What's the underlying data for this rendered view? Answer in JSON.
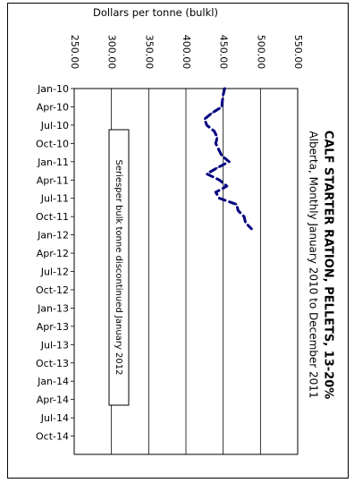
{
  "chart_data": {
    "type": "line",
    "title": "CALF STARTER RATION, PELLETS, 13-20%",
    "subtitle": "Alberta, Monthly January 2010 to December 2011",
    "ylabel": "Dollars per tonne (bulkl)",
    "yticks": [
      "250.00",
      "300.00",
      "350.00",
      "400.00",
      "450.00",
      "500.00",
      "550.00"
    ],
    "ylim": [
      250,
      550
    ],
    "xticks": [
      "Jan-10",
      "Apr-10",
      "Jul-10",
      "Oct-10",
      "Jan-11",
      "Apr-11",
      "Jul-11",
      "Oct-11",
      "Jan-12",
      "Apr-12",
      "Jul-12",
      "Oct-12",
      "Jan-13",
      "Apr-13",
      "Jul-13",
      "Oct-13",
      "Jan-14",
      "Apr-14",
      "Jul-14",
      "Oct-14"
    ],
    "x": [
      "Jan-10",
      "Feb-10",
      "Mar-10",
      "Apr-10",
      "May-10",
      "Jun-10",
      "Jul-10",
      "Aug-10",
      "Sep-10",
      "Oct-10",
      "Nov-10",
      "Dec-10",
      "Jan-11",
      "Feb-11",
      "Mar-11",
      "Apr-11",
      "May-11",
      "Jun-11",
      "Jul-11",
      "Aug-11",
      "Sep-11",
      "Oct-11",
      "Nov-11",
      "Dec-11"
    ],
    "series": [
      {
        "name": "",
        "color": "#00007f",
        "line_style": "dashed",
        "values": [
          452,
          450,
          449,
          448,
          435,
          425,
          428,
          438,
          442,
          440,
          444,
          448,
          458,
          442,
          428,
          445,
          455,
          440,
          445,
          468,
          470,
          478,
          480,
          488
        ]
      }
    ],
    "annotation": "Seriesper bulk tonne discontinued January 2012",
    "grid": true,
    "orientation": "rotated-90-clockwise"
  }
}
